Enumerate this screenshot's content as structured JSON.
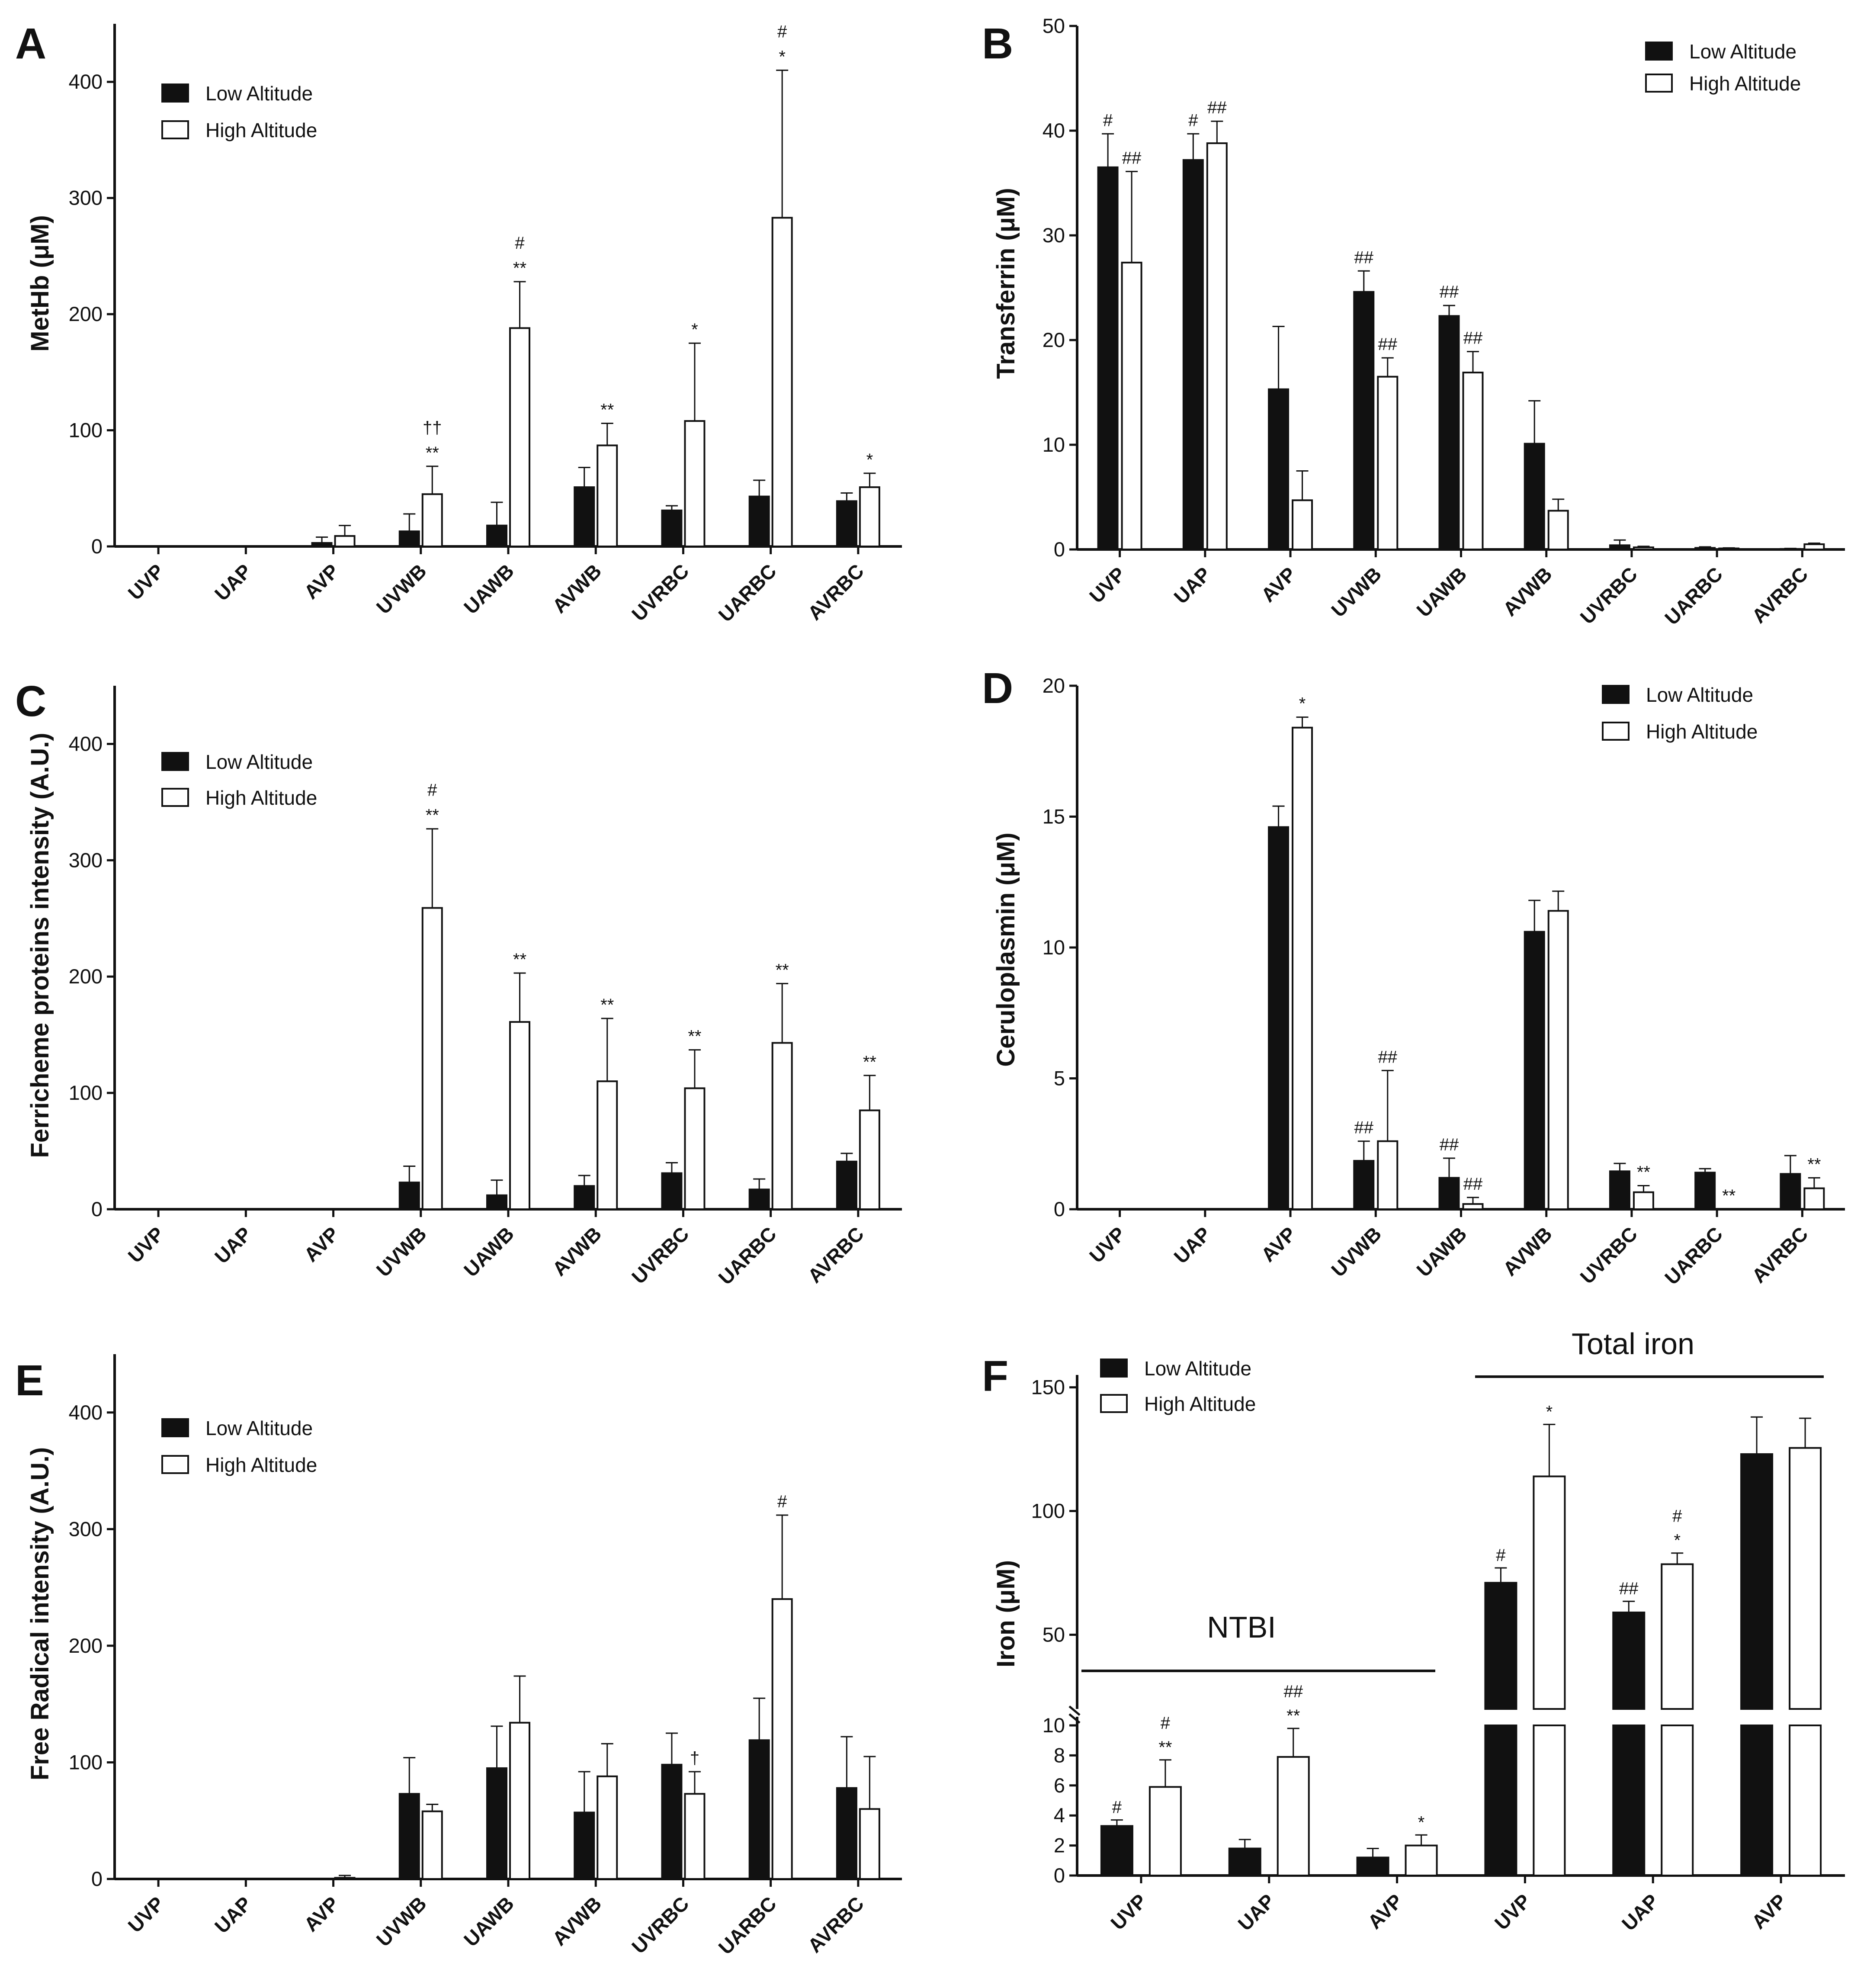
{
  "legend": {
    "low": "Low Altitude",
    "high": "High Altitude"
  },
  "colors": {
    "low": "#111111",
    "high": "#ffffff",
    "axis": "#111111"
  },
  "chart_data": [
    {
      "panel": "A",
      "type": "bar",
      "ylabel": "MetHb (μM)",
      "ylim": [
        0,
        450
      ],
      "yticks": [
        0,
        100,
        200,
        300,
        400
      ],
      "legend_position": "top-left",
      "categories": [
        "UVP",
        "UAP",
        "AVP",
        "UVWB",
        "UAWB",
        "AVWB",
        "UVRBC",
        "UARBC",
        "AVRBC"
      ],
      "series": [
        {
          "name": "Low Altitude",
          "values": [
            0,
            0,
            3,
            13,
            18,
            51,
            31,
            43,
            39
          ],
          "errors": [
            0,
            0,
            5,
            15,
            20,
            17,
            4,
            14,
            7
          ],
          "annotations": [
            "",
            "",
            "",
            "",
            "",
            "",
            "",
            "",
            ""
          ]
        },
        {
          "name": "High Altitude",
          "values": [
            0,
            0,
            9,
            45,
            188,
            87,
            108,
            283,
            51
          ],
          "errors": [
            0,
            0,
            9,
            24,
            40,
            19,
            67,
            127,
            12
          ],
          "annotations": [
            "",
            "",
            "",
            "††\n**",
            "#\n**",
            "**",
            "*",
            "#\n*",
            "*"
          ]
        }
      ]
    },
    {
      "panel": "B",
      "type": "bar",
      "ylabel": "Transferrin (μM)",
      "ylim": [
        0,
        50
      ],
      "yticks": [
        0,
        10,
        20,
        30,
        40,
        50
      ],
      "legend_position": "top-right",
      "categories": [
        "UVP",
        "UAP",
        "AVP",
        "UVWB",
        "UAWB",
        "AVWB",
        "UVRBC",
        "UARBC",
        "AVRBC"
      ],
      "series": [
        {
          "name": "Low Altitude",
          "values": [
            36.5,
            37.2,
            15.3,
            24.6,
            22.3,
            10.1,
            0.4,
            0.15,
            0.05
          ],
          "errors": [
            3.2,
            2.5,
            6,
            2,
            1,
            4.1,
            0.5,
            0.1,
            0.05
          ],
          "annotations": [
            "#",
            "#",
            "",
            "##",
            "##",
            "",
            "",
            "",
            ""
          ]
        },
        {
          "name": "High Altitude",
          "values": [
            27.4,
            38.8,
            4.7,
            16.5,
            16.9,
            3.7,
            0.2,
            0.1,
            0.5
          ],
          "errors": [
            8.7,
            2.1,
            2.8,
            1.8,
            2,
            1.1,
            0.1,
            0.05,
            0.1
          ],
          "annotations": [
            "##",
            "##",
            "",
            "##",
            "##",
            "",
            "",
            "",
            ""
          ]
        }
      ]
    },
    {
      "panel": "C",
      "type": "bar",
      "ylabel": "Ferricheme proteins intensity (A.U.)",
      "ylim": [
        0,
        450
      ],
      "yticks": [
        0,
        100,
        200,
        300,
        400
      ],
      "legend_position": "top-left",
      "categories": [
        "UVP",
        "UAP",
        "AVP",
        "UVWB",
        "UAWB",
        "AVWB",
        "UVRBC",
        "UARBC",
        "AVRBC"
      ],
      "series": [
        {
          "name": "Low Altitude",
          "values": [
            0,
            0,
            0,
            23,
            12,
            20,
            31,
            17,
            41
          ],
          "errors": [
            0,
            0,
            0,
            14,
            13,
            9,
            9,
            9,
            7
          ],
          "annotations": [
            "",
            "",
            "",
            "",
            "",
            "",
            "",
            "",
            ""
          ]
        },
        {
          "name": "High Altitude",
          "values": [
            0,
            0,
            0,
            259,
            161,
            110,
            104,
            143,
            85
          ],
          "errors": [
            0,
            0,
            0,
            68,
            42,
            54,
            33,
            51,
            30
          ],
          "annotations": [
            "",
            "",
            "",
            "#\n**",
            "**",
            "**",
            "**",
            "**",
            "**"
          ]
        }
      ]
    },
    {
      "panel": "D",
      "type": "bar",
      "ylabel": "Ceruloplasmin (μM)",
      "ylim": [
        0,
        20
      ],
      "yticks": [
        0,
        5,
        10,
        15,
        20
      ],
      "legend_position": "top-right",
      "categories": [
        "UVP",
        "UAP",
        "AVP",
        "UVWB",
        "UAWB",
        "AVWB",
        "UVRBC",
        "UARBC",
        "AVRBC"
      ],
      "series": [
        {
          "name": "Low Altitude",
          "values": [
            0,
            0,
            14.6,
            1.85,
            1.2,
            10.6,
            1.45,
            1.4,
            1.35
          ],
          "errors": [
            0,
            0,
            0.8,
            0.75,
            0.75,
            1.2,
            0.3,
            0.15,
            0.7
          ],
          "annotations": [
            "",
            "",
            "",
            "##",
            "##",
            "",
            "",
            "",
            ""
          ]
        },
        {
          "name": "High Altitude",
          "values": [
            0,
            0,
            18.4,
            2.6,
            0.2,
            11.4,
            0.65,
            0,
            0.8
          ],
          "errors": [
            0,
            0,
            0.4,
            2.7,
            0.25,
            0.75,
            0.25,
            0,
            0.4
          ],
          "annotations": [
            "",
            "",
            "*",
            "##",
            "##",
            "",
            "**",
            "**",
            "**"
          ]
        }
      ]
    },
    {
      "panel": "E",
      "type": "bar",
      "ylabel": "Free Radical intensity (A.U.)",
      "ylim": [
        0,
        450
      ],
      "yticks": [
        0,
        100,
        200,
        300,
        400
      ],
      "legend_position": "top-left",
      "categories": [
        "UVP",
        "UAP",
        "AVP",
        "UVWB",
        "UAWB",
        "AVWB",
        "UVRBC",
        "UARBC",
        "AVRBC"
      ],
      "series": [
        {
          "name": "Low Altitude",
          "values": [
            0,
            0,
            0,
            73,
            95,
            57,
            98,
            119,
            78
          ],
          "errors": [
            0,
            0,
            0,
            31,
            36,
            35,
            27,
            36,
            44
          ],
          "annotations": [
            "",
            "",
            "",
            "",
            "",
            "",
            "",
            "",
            ""
          ]
        },
        {
          "name": "High Altitude",
          "values": [
            0,
            0,
            1,
            58,
            134,
            88,
            73,
            240,
            60
          ],
          "errors": [
            0,
            0,
            2,
            6,
            40,
            28,
            19,
            72,
            45
          ],
          "annotations": [
            "",
            "",
            "",
            "",
            "",
            "",
            "†",
            "#",
            ""
          ]
        }
      ]
    },
    {
      "panel": "F",
      "type": "bar",
      "ylabel": "Iron (μM)",
      "broken_axis": true,
      "ylim_lower": [
        0,
        10
      ],
      "ylim_upper": [
        20,
        155
      ],
      "yticks_lower": [
        0,
        2,
        4,
        6,
        8,
        10
      ],
      "yticks_upper": [
        50,
        100,
        150
      ],
      "legend_position": "top-left",
      "categories": [
        "UVP",
        "UAP",
        "AVP",
        "UVP",
        "UAP",
        "AVP"
      ],
      "groups": [
        {
          "label": "NTBI",
          "categories": [
            "UVP",
            "UAP",
            "AVP"
          ]
        },
        {
          "label": "Total iron",
          "categories": [
            "UVP",
            "UAP",
            "AVP"
          ]
        }
      ],
      "series": [
        {
          "name": "Low Altitude",
          "values": [
            3.3,
            1.8,
            1.2,
            71,
            59,
            123
          ],
          "errors": [
            0.4,
            0.6,
            0.6,
            6,
            4.5,
            15
          ],
          "annotations": [
            "#",
            "",
            "",
            "#",
            "##",
            ""
          ]
        },
        {
          "name": "High Altitude",
          "values": [
            5.9,
            7.9,
            2,
            114,
            78.5,
            125.5
          ],
          "errors": [
            1.8,
            1.9,
            0.7,
            21,
            4.5,
            12
          ],
          "annotations": [
            "#\n**",
            "##\n**",
            "*",
            "*",
            "#\n*",
            ""
          ]
        }
      ]
    }
  ]
}
